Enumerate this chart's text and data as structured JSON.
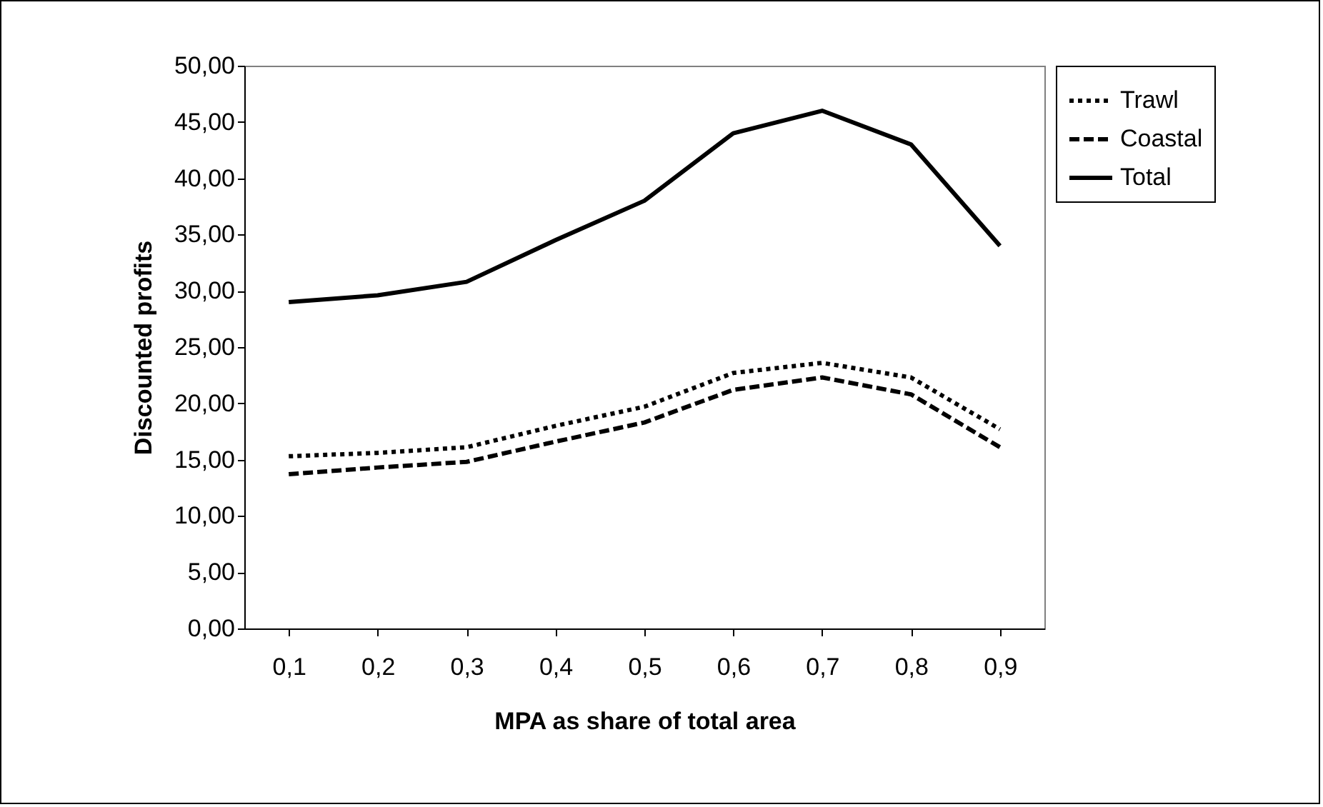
{
  "chart_data": {
    "type": "line",
    "xlabel": "MPA as share of total area",
    "ylabel": "Discounted profits",
    "categories": [
      "0,1",
      "0,2",
      "0,3",
      "0,4",
      "0,5",
      "0,6",
      "0,7",
      "0,8",
      "0,9"
    ],
    "ylim": [
      0,
      50
    ],
    "yticks": [
      {
        "value": 0,
        "label": "0,00"
      },
      {
        "value": 5,
        "label": "5,00"
      },
      {
        "value": 10,
        "label": "10,00"
      },
      {
        "value": 15,
        "label": "15,00"
      },
      {
        "value": 20,
        "label": "20,00"
      },
      {
        "value": 25,
        "label": "25,00"
      },
      {
        "value": 30,
        "label": "30,00"
      },
      {
        "value": 35,
        "label": "35,00"
      },
      {
        "value": 40,
        "label": "40,00"
      },
      {
        "value": 45,
        "label": "45,00"
      },
      {
        "value": 50,
        "label": "50,00"
      }
    ],
    "grid": false,
    "legend": "right",
    "marker": "none",
    "series": [
      {
        "name": "Trawl",
        "color": "#000000",
        "line_style": "dotted",
        "values": [
          15.3,
          15.6,
          16.1,
          18,
          19.7,
          22.7,
          23.6,
          22.3,
          17.7
        ]
      },
      {
        "name": "Coastal",
        "color": "#000000",
        "line_style": "dashed",
        "values": [
          13.7,
          14.3,
          14.8,
          16.6,
          18.3,
          21.2,
          22.3,
          20.8,
          16.1
        ]
      },
      {
        "name": "Total",
        "color": "#000000",
        "line_style": "solid",
        "values": [
          29,
          29.6,
          30.8,
          34.5,
          38,
          44,
          46,
          43,
          34
        ]
      }
    ]
  }
}
